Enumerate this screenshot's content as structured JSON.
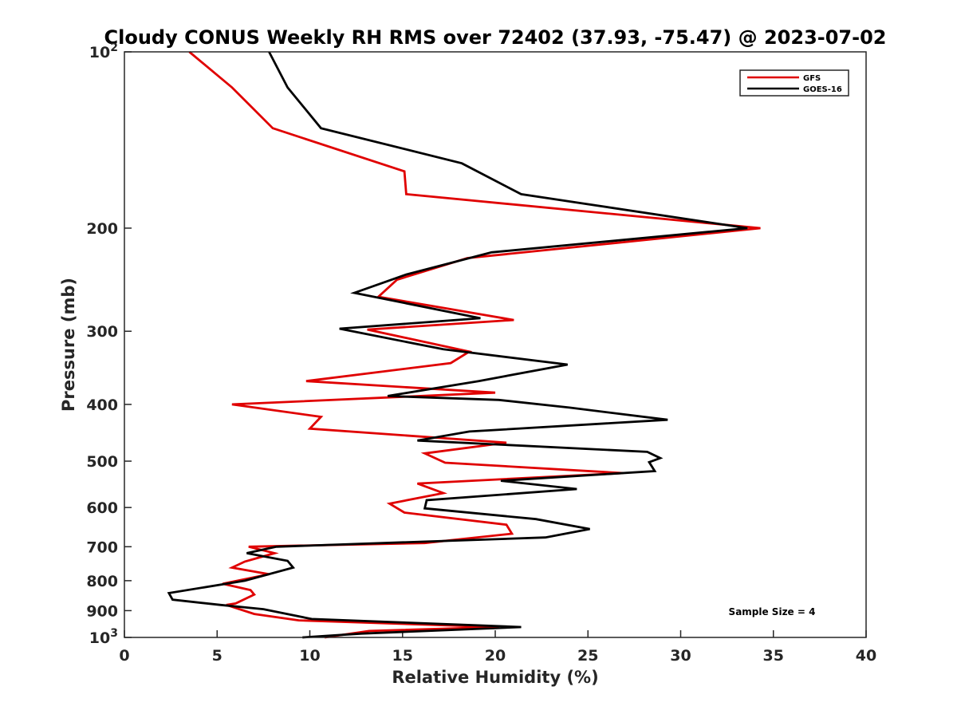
{
  "chart_data": {
    "type": "line",
    "title": "Cloudy CONUS Weekly RH RMS over 72402 (37.93, -75.47) @ 2023-07-02",
    "xlabel": "Relative Humidity (%)",
    "ylabel": "Pressure (mb)",
    "xlim": [
      0,
      40
    ],
    "ylim": [
      100,
      1000
    ],
    "yscale": "log",
    "y_reversed": true,
    "grid": false,
    "legend_position": "top-right",
    "annotation": "Sample Size = 4",
    "x_ticks": [
      0,
      5,
      10,
      15,
      20,
      25,
      30,
      35,
      40
    ],
    "y_ticks": [
      {
        "value": 100,
        "label": "10",
        "sup": "2"
      },
      {
        "value": 200,
        "label": "200",
        "sup": ""
      },
      {
        "value": 300,
        "label": "300",
        "sup": ""
      },
      {
        "value": 400,
        "label": "400",
        "sup": ""
      },
      {
        "value": 500,
        "label": "500",
        "sup": ""
      },
      {
        "value": 600,
        "label": "600",
        "sup": ""
      },
      {
        "value": 700,
        "label": "700",
        "sup": ""
      },
      {
        "value": 800,
        "label": "800",
        "sup": ""
      },
      {
        "value": 900,
        "label": "900",
        "sup": ""
      },
      {
        "value": 1000,
        "label": "10",
        "sup": "3"
      }
    ],
    "series": [
      {
        "name": "GFS",
        "color": "#e00000",
        "points": [
          [
            3.5,
            100
          ],
          [
            5.8,
            115
          ],
          [
            8.0,
            135
          ],
          [
            15.1,
            160
          ],
          [
            15.2,
            175
          ],
          [
            34.3,
            200
          ],
          [
            18.5,
            225
          ],
          [
            14.7,
            245
          ],
          [
            13.7,
            262
          ],
          [
            21.0,
            287
          ],
          [
            13.1,
            298
          ],
          [
            18.6,
            325
          ],
          [
            17.6,
            340
          ],
          [
            9.8,
            365
          ],
          [
            20.0,
            382
          ],
          [
            5.8,
            400
          ],
          [
            10.6,
            420
          ],
          [
            10.0,
            440
          ],
          [
            20.6,
            465
          ],
          [
            16.2,
            485
          ],
          [
            17.3,
            503
          ],
          [
            26.9,
            524
          ],
          [
            15.8,
            546
          ],
          [
            17.2,
            567
          ],
          [
            14.3,
            591
          ],
          [
            15.1,
            612
          ],
          [
            20.6,
            642
          ],
          [
            20.9,
            665
          ],
          [
            16.2,
            690
          ],
          [
            6.7,
            700
          ],
          [
            8.1,
            718
          ],
          [
            6.5,
            742
          ],
          [
            5.8,
            760
          ],
          [
            7.8,
            780
          ],
          [
            5.3,
            810
          ],
          [
            6.8,
            830
          ],
          [
            7.0,
            845
          ],
          [
            6.0,
            875
          ],
          [
            5.5,
            880
          ],
          [
            7.0,
            912
          ],
          [
            9.4,
            935
          ],
          [
            20.2,
            960
          ],
          [
            13.2,
            975
          ],
          [
            10.8,
            1000
          ]
        ]
      },
      {
        "name": "GOES-16",
        "color": "#000000",
        "points": [
          [
            7.8,
            100
          ],
          [
            8.8,
            115
          ],
          [
            10.6,
            135
          ],
          [
            18.2,
            155
          ],
          [
            21.4,
            175
          ],
          [
            33.6,
            200
          ],
          [
            19.8,
            220
          ],
          [
            15.2,
            240
          ],
          [
            12.4,
            258
          ],
          [
            19.2,
            285
          ],
          [
            11.6,
            297
          ],
          [
            17.2,
            322
          ],
          [
            23.9,
            342
          ],
          [
            19.1,
            365
          ],
          [
            14.2,
            387
          ],
          [
            20.2,
            393
          ],
          [
            24.0,
            405
          ],
          [
            29.3,
            425
          ],
          [
            18.6,
            445
          ],
          [
            15.8,
            461
          ],
          [
            28.2,
            482
          ],
          [
            28.9,
            494
          ],
          [
            28.3,
            502
          ],
          [
            28.6,
            520
          ],
          [
            20.3,
            540
          ],
          [
            24.4,
            558
          ],
          [
            16.3,
            583
          ],
          [
            16.2,
            602
          ],
          [
            22.2,
            628
          ],
          [
            25.1,
            653
          ],
          [
            22.7,
            675
          ],
          [
            8.2,
            700
          ],
          [
            6.6,
            718
          ],
          [
            8.8,
            740
          ],
          [
            9.1,
            760
          ],
          [
            6.5,
            800
          ],
          [
            2.4,
            840
          ],
          [
            2.6,
            862
          ],
          [
            5.2,
            880
          ],
          [
            7.5,
            895
          ],
          [
            10.1,
            930
          ],
          [
            21.4,
            960
          ],
          [
            12.8,
            985
          ],
          [
            9.6,
            1000
          ]
        ]
      }
    ]
  }
}
